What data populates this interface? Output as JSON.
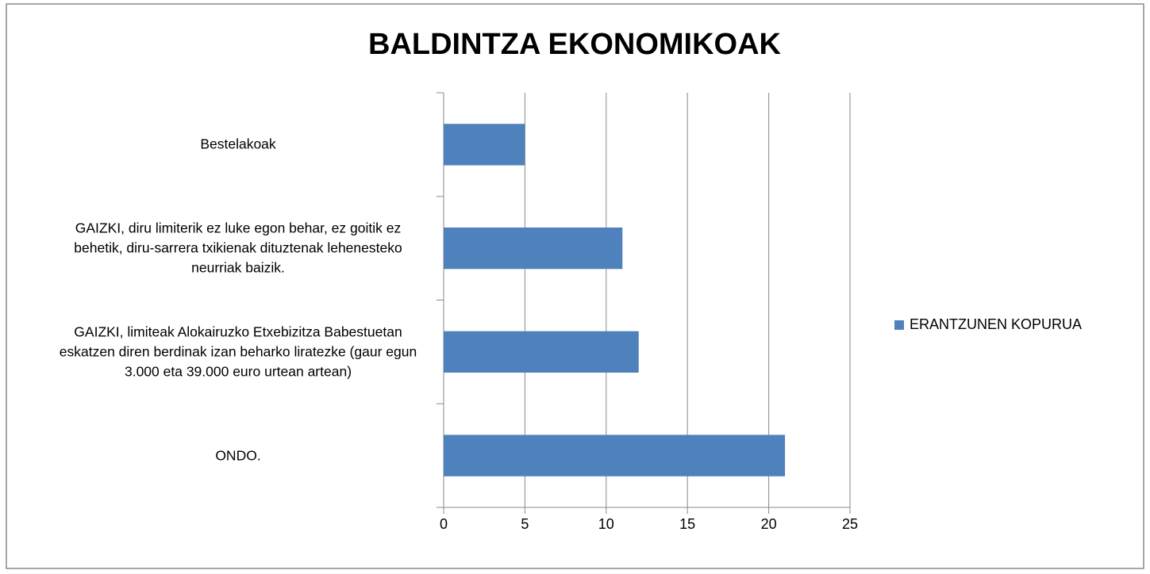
{
  "chart_data": {
    "type": "barh",
    "title": "BALDINTZA EKONOMIKOAK",
    "categories": [
      "Bestelakoak",
      "GAIZKI, diru limiterik ez luke egon behar, ez goitik ez behetik, diru-sarrera txikienak dituztenak lehenesteko neurriak baizik.",
      "GAIZKI, limiteak Alokairuzko Etxebizitza Babestuetan eskatzen diren berdinak izan beharko liratezke (gaur egun 3.000 eta 39.000 euro urtean artean)",
      "ONDO."
    ],
    "series": [
      {
        "name": "ERANTZUNEN KOPURUA",
        "color": "#4f81bd",
        "values": [
          5,
          11,
          12,
          21
        ]
      }
    ],
    "xlim": [
      0,
      25
    ],
    "xticks": [
      0,
      5,
      10,
      15,
      20,
      25
    ],
    "grid": true,
    "legend": "right"
  }
}
